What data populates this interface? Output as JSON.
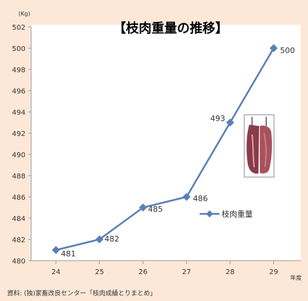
{
  "chart_data": {
    "type": "line",
    "title": "【枝肉重量の推移】",
    "y_unit": "(Kg)",
    "x_unit": "年度",
    "categories": [
      "24",
      "25",
      "26",
      "27",
      "28",
      "29"
    ],
    "series": [
      {
        "name": "枝肉重量",
        "values": [
          481,
          482,
          485,
          486,
          493,
          500
        ],
        "labels": [
          "481",
          "482",
          "485",
          "486",
          "493",
          "500"
        ],
        "color": "#5b7fb5"
      }
    ],
    "y_ticks": [
      "480",
      "482",
      "484",
      "486",
      "488",
      "490",
      "492",
      "494",
      "496",
      "498",
      "500",
      "502"
    ],
    "ylim": [
      480,
      502
    ],
    "grid": false,
    "legend_position": "right"
  },
  "source": "資料: (独)家畜改良センター「枝肉成績とりまとめ」",
  "photo_icon": "meat-carcass-photo"
}
